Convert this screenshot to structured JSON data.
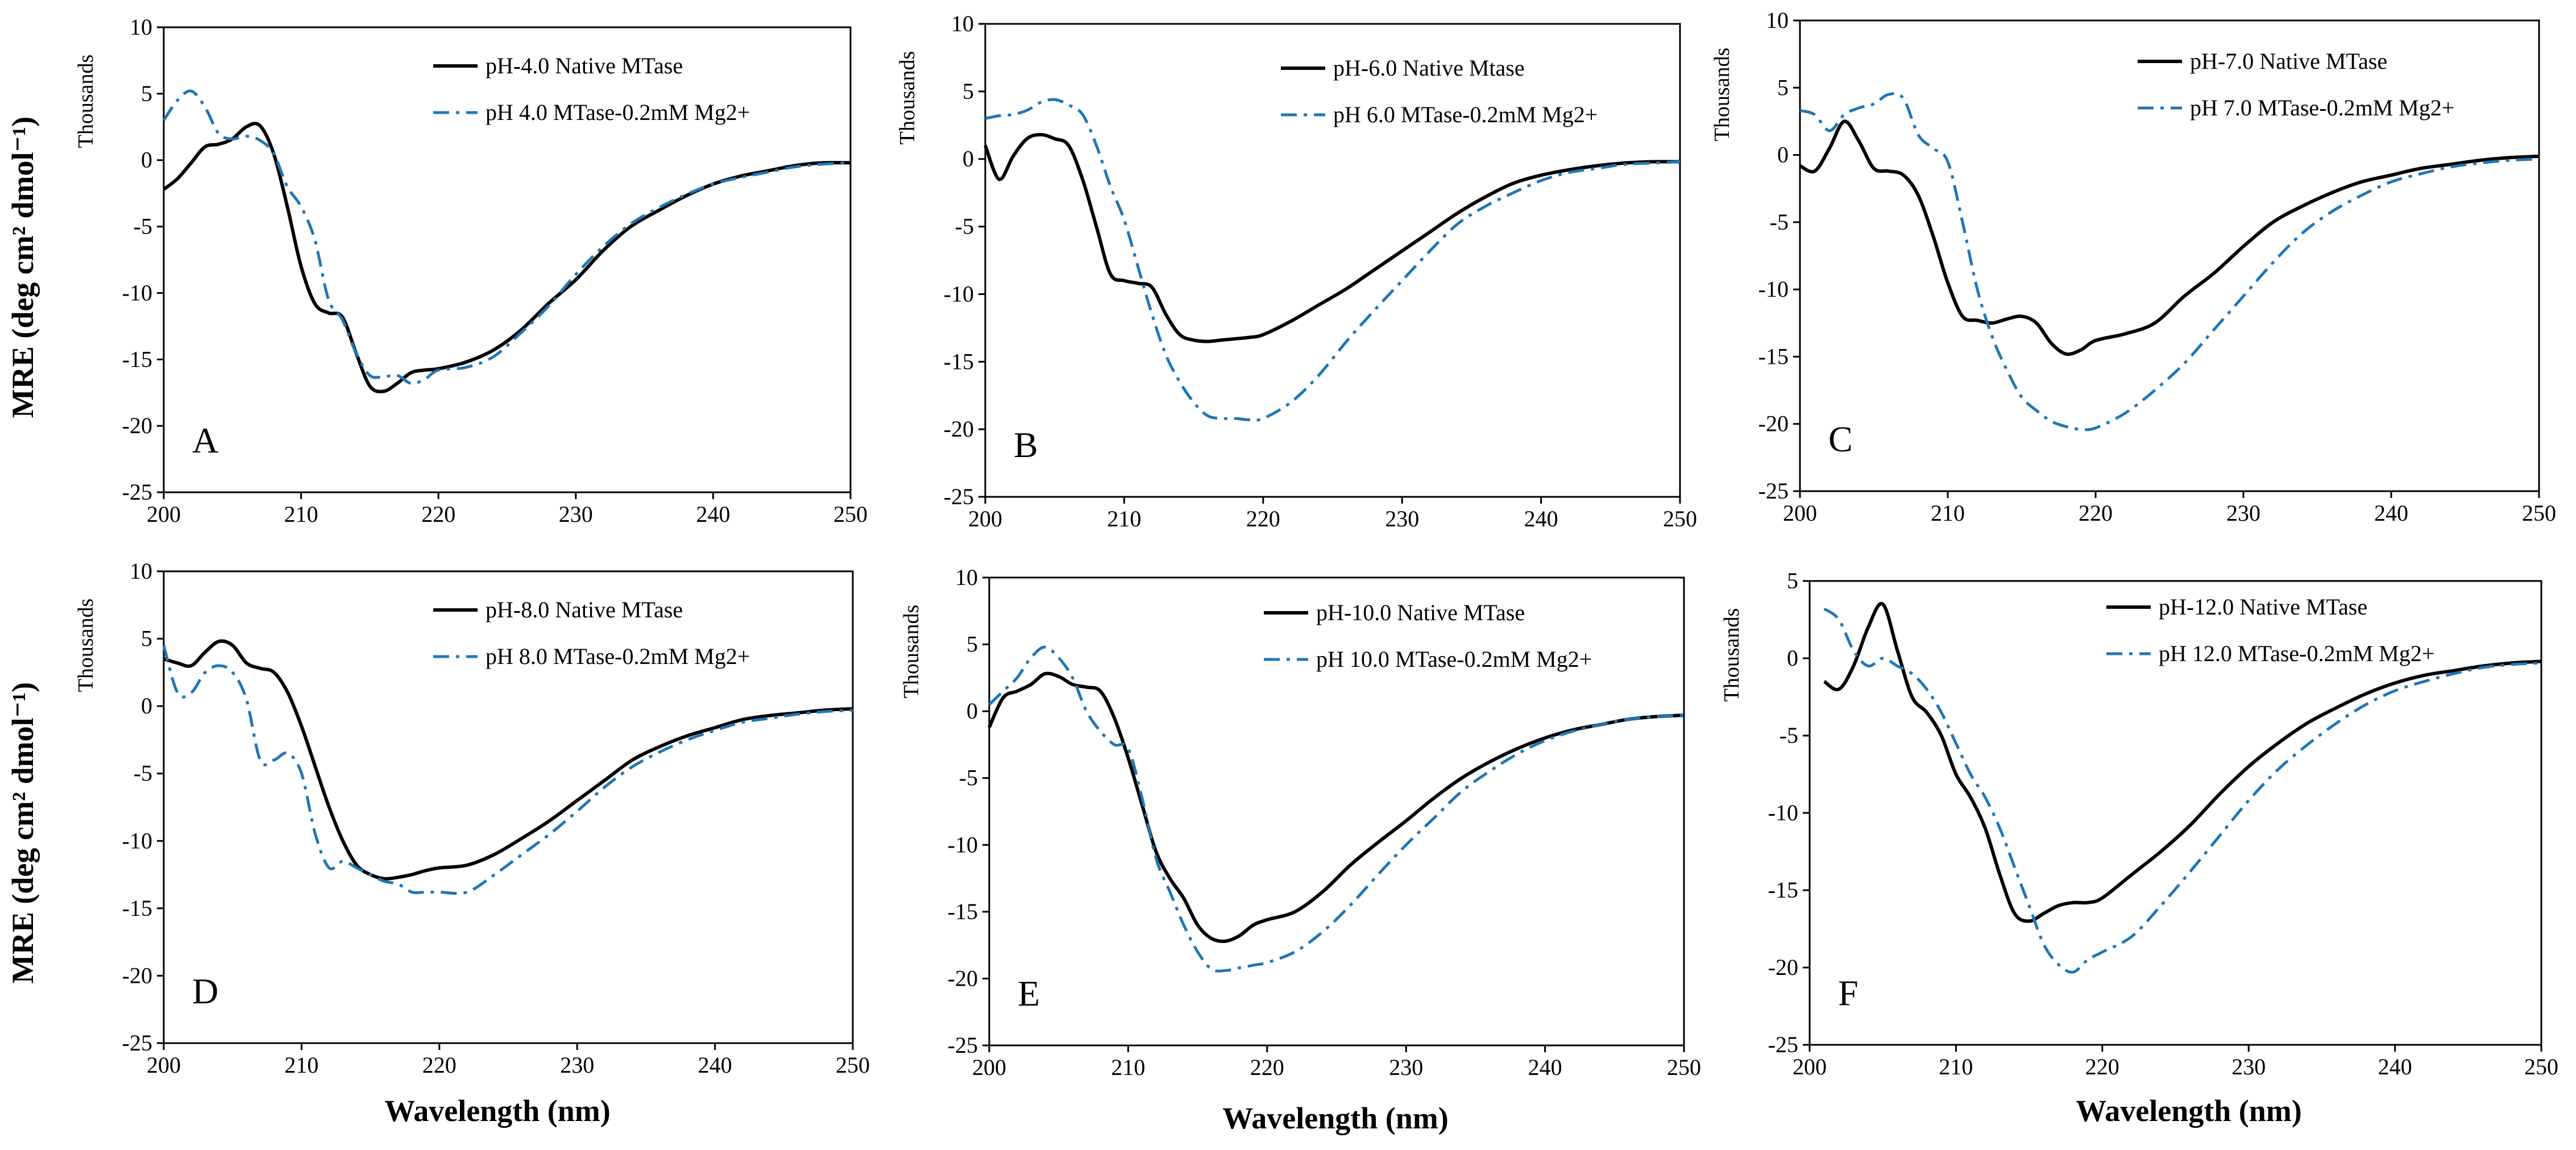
{
  "figure": {
    "y_axis_title": "MRE (deg cm² dmol⁻¹)",
    "x_axis_title": "Wavelength (nm)",
    "units_label": "Thousands",
    "colors": {
      "native": "#000000",
      "mg": "#1f77b4"
    }
  },
  "chart_data": [
    {
      "type": "line",
      "panel_label": "A",
      "xlim": [
        200,
        250
      ],
      "ylim": [
        -25,
        10
      ],
      "xticks": [
        200,
        210,
        220,
        230,
        240,
        250
      ],
      "yticks": [
        -25,
        -20,
        -15,
        -10,
        -5,
        0,
        5,
        10
      ],
      "xlabel": "",
      "ylabel": "Thousands",
      "series": [
        {
          "name": "pH-4.0 Native MTase",
          "style": "solid",
          "x": [
            200,
            201,
            202,
            203,
            204,
            205,
            206,
            207,
            208,
            209,
            210,
            211,
            212,
            213,
            214,
            215,
            216,
            217,
            218,
            219,
            220,
            222,
            224,
            226,
            228,
            230,
            232,
            234,
            236,
            238,
            240,
            242,
            244,
            246,
            248,
            250
          ],
          "y": [
            -2.2,
            -1.4,
            -0.2,
            1.0,
            1.2,
            1.6,
            2.5,
            2.6,
            0.5,
            -3.5,
            -8.0,
            -10.8,
            -11.5,
            -11.8,
            -14.5,
            -17.0,
            -17.4,
            -16.8,
            -16.0,
            -15.8,
            -15.7,
            -15.2,
            -14.3,
            -12.8,
            -10.8,
            -9.0,
            -6.8,
            -5.0,
            -3.8,
            -2.7,
            -1.8,
            -1.2,
            -0.8,
            -0.4,
            -0.2,
            -0.2
          ]
        },
        {
          "name": "pH 4.0 MTase-0.2mM Mg2+",
          "style": "dashdot",
          "x": [
            200,
            201,
            202,
            203,
            204,
            205,
            206,
            207,
            208,
            209,
            210,
            211,
            212,
            213,
            214,
            215,
            216,
            217,
            218,
            219,
            220,
            222,
            224,
            226,
            228,
            230,
            232,
            234,
            236,
            238,
            240,
            242,
            244,
            246,
            248,
            250
          ],
          "y": [
            3.0,
            4.5,
            5.2,
            4.0,
            2.0,
            1.6,
            1.8,
            1.5,
            0.5,
            -2.0,
            -3.5,
            -6.0,
            -10.5,
            -12.0,
            -14.5,
            -16.2,
            -16.3,
            -16.2,
            -16.8,
            -16.5,
            -15.8,
            -15.6,
            -14.8,
            -13.0,
            -11.0,
            -8.6,
            -6.5,
            -4.8,
            -3.6,
            -2.6,
            -1.8,
            -1.3,
            -0.9,
            -0.5,
            -0.3,
            -0.2
          ]
        }
      ]
    },
    {
      "type": "line",
      "panel_label": "B",
      "xlim": [
        200,
        250
      ],
      "ylim": [
        -25,
        10
      ],
      "xticks": [
        200,
        210,
        220,
        230,
        240,
        250
      ],
      "yticks": [
        -25,
        -20,
        -15,
        -10,
        -5,
        0,
        5,
        10
      ],
      "xlabel": "",
      "ylabel": "Thousands",
      "series": [
        {
          "name": "pH-6.0 Native Mtase",
          "style": "solid",
          "x": [
            200,
            201,
            202,
            203,
            204,
            205,
            206,
            207,
            208,
            209,
            210,
            211,
            212,
            213,
            214,
            215,
            216,
            217,
            218,
            219,
            220,
            222,
            224,
            226,
            228,
            230,
            232,
            234,
            236,
            238,
            240,
            242,
            244,
            246,
            248,
            250
          ],
          "y": [
            1.0,
            -1.5,
            0.2,
            1.5,
            1.8,
            1.5,
            1.0,
            -1.5,
            -5.0,
            -8.5,
            -9.0,
            -9.2,
            -9.5,
            -11.5,
            -13.0,
            -13.4,
            -13.5,
            -13.4,
            -13.3,
            -13.2,
            -13.0,
            -12.0,
            -10.8,
            -9.6,
            -8.2,
            -6.8,
            -5.4,
            -4.0,
            -2.8,
            -1.8,
            -1.2,
            -0.8,
            -0.5,
            -0.3,
            -0.2,
            -0.2
          ]
        },
        {
          "name": "pH 6.0 MTase-0.2mM Mg2+",
          "style": "dashdot",
          "x": [
            200,
            201,
            202,
            203,
            204,
            205,
            206,
            207,
            208,
            209,
            210,
            211,
            212,
            213,
            214,
            215,
            216,
            217,
            218,
            219,
            220,
            222,
            224,
            226,
            228,
            230,
            232,
            234,
            236,
            238,
            240,
            242,
            244,
            246,
            248,
            250
          ],
          "y": [
            3.0,
            3.2,
            3.3,
            3.6,
            4.2,
            4.4,
            4.0,
            3.3,
            1.0,
            -2.0,
            -4.5,
            -8.0,
            -11.5,
            -14.5,
            -16.5,
            -18.0,
            -19.0,
            -19.2,
            -19.2,
            -19.3,
            -19.2,
            -18.0,
            -16.0,
            -13.5,
            -11.2,
            -9.0,
            -6.8,
            -4.8,
            -3.5,
            -2.5,
            -1.6,
            -1.0,
            -0.7,
            -0.4,
            -0.3,
            -0.2
          ]
        }
      ]
    },
    {
      "type": "line",
      "panel_label": "C",
      "xlim": [
        200,
        250
      ],
      "ylim": [
        -25,
        10
      ],
      "xticks": [
        200,
        210,
        220,
        230,
        240,
        250
      ],
      "yticks": [
        -25,
        -20,
        -15,
        -10,
        -5,
        0,
        5,
        10
      ],
      "xlabel": "",
      "ylabel": "Thousands",
      "series": [
        {
          "name": "pH-7.0 Native MTase",
          "style": "solid",
          "x": [
            200,
            201,
            202,
            203,
            204,
            205,
            206,
            207,
            208,
            209,
            210,
            211,
            212,
            213,
            214,
            215,
            216,
            217,
            218,
            219,
            220,
            222,
            224,
            226,
            228,
            230,
            232,
            234,
            236,
            238,
            240,
            242,
            244,
            246,
            248,
            250
          ],
          "y": [
            -0.8,
            -1.2,
            0.5,
            2.5,
            1.0,
            -1.0,
            -1.2,
            -1.5,
            -3.0,
            -6.0,
            -9.5,
            -12.0,
            -12.3,
            -12.5,
            -12.2,
            -12.0,
            -12.5,
            -14.0,
            -14.8,
            -14.5,
            -13.8,
            -13.3,
            -12.5,
            -10.5,
            -8.8,
            -6.8,
            -5.0,
            -3.8,
            -2.8,
            -2.0,
            -1.5,
            -1.0,
            -0.7,
            -0.4,
            -0.2,
            -0.1
          ]
        },
        {
          "name": "pH 7.0 MTase-0.2mM Mg2+",
          "style": "dashdot",
          "x": [
            200,
            201,
            202,
            203,
            204,
            205,
            206,
            207,
            208,
            209,
            210,
            211,
            212,
            213,
            214,
            215,
            216,
            217,
            218,
            219,
            220,
            222,
            224,
            226,
            228,
            230,
            232,
            234,
            236,
            238,
            240,
            242,
            244,
            246,
            248,
            250
          ],
          "y": [
            3.3,
            3.0,
            1.8,
            3.0,
            3.5,
            3.8,
            4.5,
            4.2,
            1.5,
            0.5,
            -0.5,
            -5.0,
            -10.0,
            -13.5,
            -16.0,
            -18.0,
            -19.0,
            -19.8,
            -20.2,
            -20.4,
            -20.3,
            -19.2,
            -17.5,
            -15.5,
            -13.0,
            -10.5,
            -8.0,
            -5.8,
            -4.2,
            -3.0,
            -2.0,
            -1.4,
            -0.9,
            -0.6,
            -0.4,
            -0.3
          ]
        }
      ]
    },
    {
      "type": "line",
      "panel_label": "D",
      "xlim": [
        200,
        250
      ],
      "ylim": [
        -25,
        10
      ],
      "xticks": [
        200,
        210,
        220,
        230,
        240,
        250
      ],
      "yticks": [
        -25,
        -20,
        -15,
        -10,
        -5,
        0,
        5,
        10
      ],
      "xlabel": "Wavelength (nm)",
      "ylabel": "Thousands",
      "series": [
        {
          "name": "pH-8.0 Native MTase",
          "style": "solid",
          "x": [
            200,
            201,
            202,
            203,
            204,
            205,
            206,
            207,
            208,
            209,
            210,
            211,
            212,
            213,
            214,
            215,
            216,
            217,
            218,
            219,
            220,
            222,
            224,
            226,
            228,
            230,
            232,
            234,
            236,
            238,
            240,
            242,
            244,
            246,
            248,
            250
          ],
          "y": [
            3.5,
            3.2,
            3.0,
            4.0,
            4.8,
            4.5,
            3.2,
            2.8,
            2.5,
            1.0,
            -1.5,
            -4.5,
            -7.5,
            -10.0,
            -11.8,
            -12.5,
            -12.8,
            -12.7,
            -12.5,
            -12.2,
            -12.0,
            -11.8,
            -11.0,
            -9.8,
            -8.5,
            -7.0,
            -5.5,
            -4.0,
            -3.0,
            -2.2,
            -1.6,
            -1.0,
            -0.7,
            -0.5,
            -0.3,
            -0.2
          ]
        },
        {
          "name": "pH 8.0 MTase-0.2mM Mg2+",
          "style": "dashdot",
          "x": [
            200,
            201,
            202,
            203,
            204,
            205,
            206,
            207,
            208,
            209,
            210,
            211,
            212,
            213,
            214,
            215,
            216,
            217,
            218,
            219,
            220,
            222,
            224,
            226,
            228,
            230,
            232,
            234,
            236,
            238,
            240,
            242,
            244,
            246,
            248,
            250
          ],
          "y": [
            4.5,
            1.0,
            1.0,
            2.5,
            3.0,
            2.5,
            0.5,
            -4.0,
            -4.0,
            -3.5,
            -5.0,
            -9.5,
            -12.0,
            -11.5,
            -12.0,
            -12.5,
            -13.0,
            -13.2,
            -13.8,
            -13.8,
            -13.8,
            -13.8,
            -12.5,
            -11.0,
            -9.5,
            -7.8,
            -6.0,
            -4.5,
            -3.4,
            -2.5,
            -1.8,
            -1.2,
            -0.9,
            -0.6,
            -0.4,
            -0.3
          ]
        }
      ]
    },
    {
      "type": "line",
      "panel_label": "E",
      "xlim": [
        200,
        250
      ],
      "ylim": [
        -25,
        10
      ],
      "xticks": [
        200,
        210,
        220,
        230,
        240,
        250
      ],
      "yticks": [
        -25,
        -20,
        -15,
        -10,
        -5,
        0,
        5,
        10
      ],
      "xlabel": "Wavelength (nm)",
      "ylabel": "Thousands",
      "series": [
        {
          "name": "pH-10.0 Native MTase",
          "style": "solid",
          "x": [
            200,
            201,
            202,
            203,
            204,
            205,
            206,
            207,
            208,
            209,
            210,
            211,
            212,
            213,
            214,
            215,
            216,
            217,
            218,
            219,
            220,
            222,
            224,
            226,
            228,
            230,
            232,
            234,
            236,
            238,
            240,
            242,
            244,
            246,
            248,
            250
          ],
          "y": [
            -1.2,
            1.0,
            1.5,
            2.0,
            2.8,
            2.6,
            2.0,
            1.8,
            1.5,
            -0.5,
            -3.5,
            -7.0,
            -10.5,
            -12.5,
            -14.0,
            -16.0,
            -17.0,
            -17.2,
            -16.8,
            -16.0,
            -15.6,
            -15.0,
            -13.5,
            -11.5,
            -9.8,
            -8.2,
            -6.5,
            -5.0,
            -3.8,
            -2.8,
            -2.0,
            -1.4,
            -1.0,
            -0.6,
            -0.4,
            -0.3
          ]
        },
        {
          "name": "pH 10.0 MTase-0.2mM Mg2+",
          "style": "dashdot",
          "x": [
            200,
            201,
            202,
            203,
            204,
            205,
            206,
            207,
            208,
            209,
            210,
            211,
            212,
            213,
            214,
            215,
            216,
            217,
            218,
            219,
            220,
            222,
            224,
            226,
            228,
            230,
            232,
            234,
            236,
            238,
            240,
            242,
            244,
            246,
            248,
            250
          ],
          "y": [
            0.5,
            1.5,
            2.5,
            4.0,
            4.8,
            4.0,
            2.5,
            0.0,
            -1.5,
            -2.5,
            -2.8,
            -6.5,
            -11.0,
            -13.5,
            -16.0,
            -18.0,
            -19.3,
            -19.4,
            -19.2,
            -19.0,
            -18.8,
            -18.0,
            -16.5,
            -14.5,
            -12.2,
            -10.0,
            -8.0,
            -6.0,
            -4.5,
            -3.2,
            -2.2,
            -1.5,
            -1.0,
            -0.6,
            -0.4,
            -0.3
          ]
        }
      ]
    },
    {
      "type": "line",
      "panel_label": "F",
      "xlim": [
        200,
        250
      ],
      "ylim": [
        -25,
        5
      ],
      "xticks": [
        200,
        210,
        220,
        230,
        240,
        250
      ],
      "yticks": [
        -25,
        -20,
        -15,
        -10,
        -5,
        0,
        5
      ],
      "xlabel": "Wavelength (nm)",
      "ylabel": "Thousands",
      "series": [
        {
          "name": "pH-12.0 Native MTase",
          "style": "solid",
          "x": [
            201,
            202,
            203,
            204,
            205,
            206,
            207,
            208,
            209,
            210,
            211,
            212,
            213,
            214,
            215,
            216,
            217,
            218,
            219,
            220,
            222,
            224,
            226,
            228,
            230,
            232,
            234,
            236,
            238,
            240,
            242,
            244,
            246,
            248,
            250
          ],
          "y": [
            -1.5,
            -2.0,
            -0.5,
            2.0,
            3.5,
            0.5,
            -2.5,
            -3.5,
            -5.0,
            -7.5,
            -9.0,
            -11.0,
            -14.0,
            -16.5,
            -17.0,
            -16.5,
            -16.0,
            -15.8,
            -15.8,
            -15.5,
            -14.0,
            -12.5,
            -10.8,
            -8.8,
            -7.0,
            -5.5,
            -4.2,
            -3.2,
            -2.3,
            -1.6,
            -1.1,
            -0.8,
            -0.5,
            -0.3,
            -0.2
          ]
        },
        {
          "name": "pH 12.0 MTase-0.2mM Mg2+",
          "style": "dashdot",
          "x": [
            201,
            202,
            203,
            204,
            205,
            206,
            207,
            208,
            209,
            210,
            211,
            212,
            213,
            214,
            215,
            216,
            217,
            218,
            219,
            220,
            222,
            224,
            226,
            228,
            230,
            232,
            234,
            236,
            238,
            240,
            242,
            244,
            246,
            248,
            250
          ],
          "y": [
            3.2,
            2.5,
            0.5,
            -0.5,
            0.0,
            -0.5,
            -1.0,
            -2.0,
            -3.5,
            -5.5,
            -7.5,
            -9.0,
            -11.0,
            -13.5,
            -16.0,
            -18.5,
            -19.8,
            -20.3,
            -19.5,
            -19.0,
            -18.0,
            -16.0,
            -13.8,
            -11.5,
            -9.2,
            -7.2,
            -5.6,
            -4.2,
            -3.0,
            -2.1,
            -1.5,
            -1.0,
            -0.6,
            -0.4,
            -0.3
          ]
        }
      ]
    }
  ]
}
